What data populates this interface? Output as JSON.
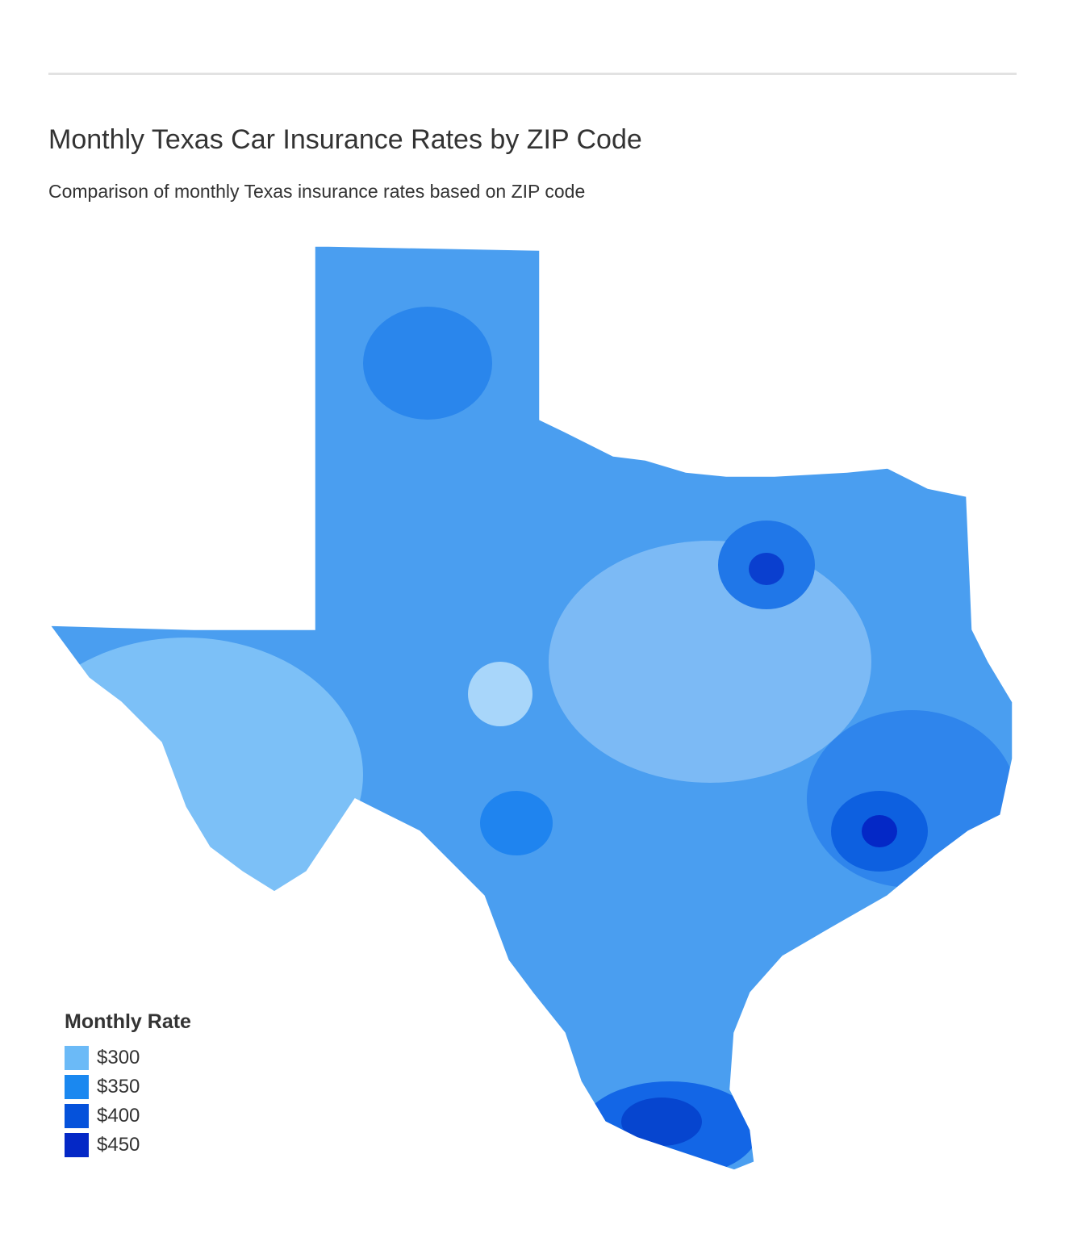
{
  "title": "Monthly Texas Car Insurance Rates by ZIP Code",
  "subtitle": "Comparison of monthly Texas insurance rates based on ZIP code",
  "legend": {
    "title": "Monthly Rate",
    "items": [
      {
        "value": 300,
        "label": "$300",
        "color": "#6bbaf7"
      },
      {
        "value": 350,
        "label": "$350",
        "color": "#1a88f0"
      },
      {
        "value": 400,
        "label": "$400",
        "color": "#0552db"
      },
      {
        "value": 450,
        "label": "$450",
        "color": "#0428c6"
      }
    ]
  }
}
